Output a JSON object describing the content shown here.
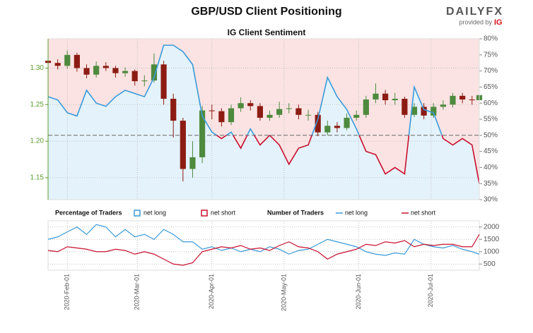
{
  "logo": {
    "brand": "DAILYFX",
    "tagline": "provided by",
    "sponsor": "IG"
  },
  "chart_data": [
    {
      "type": "candlestick",
      "title": "GBP/USD Client Positioning",
      "subtitle": "IG Client Sentiment",
      "x": [
        "2020-01-24",
        "2020-01-28",
        "2020-02-01",
        "2020-02-05",
        "2020-02-09",
        "2020-02-13",
        "2020-02-17",
        "2020-02-21",
        "2020-02-25",
        "2020-02-29",
        "2020-03-04",
        "2020-03-08",
        "2020-03-12",
        "2020-03-16",
        "2020-03-20",
        "2020-03-24",
        "2020-03-28",
        "2020-04-01",
        "2020-04-05",
        "2020-04-09",
        "2020-04-13",
        "2020-04-17",
        "2020-04-21",
        "2020-04-25",
        "2020-04-29",
        "2020-05-03",
        "2020-05-07",
        "2020-05-11",
        "2020-05-15",
        "2020-05-19",
        "2020-05-23",
        "2020-05-27",
        "2020-05-31",
        "2020-06-04",
        "2020-06-08",
        "2020-06-12",
        "2020-06-16",
        "2020-06-20",
        "2020-06-24",
        "2020-06-28",
        "2020-07-02",
        "2020-07-06",
        "2020-07-10",
        "2020-07-14",
        "2020-07-18",
        "2020-07-21"
      ],
      "open": [
        1.31,
        1.307,
        1.303,
        1.318,
        1.3,
        1.291,
        1.303,
        1.3,
        1.293,
        1.296,
        1.282,
        1.283,
        1.305,
        1.258,
        1.228,
        1.162,
        1.178,
        1.242,
        1.241,
        1.226,
        1.245,
        1.252,
        1.248,
        1.232,
        1.236,
        1.244,
        1.245,
        1.236,
        1.236,
        1.212,
        1.221,
        1.218,
        1.232,
        1.236,
        1.257,
        1.265,
        1.256,
        1.258,
        1.236,
        1.247,
        1.235,
        1.247,
        1.25,
        1.262,
        1.257,
        1.256
      ],
      "high": [
        1.316,
        1.312,
        1.324,
        1.321,
        1.305,
        1.309,
        1.308,
        1.303,
        1.301,
        1.298,
        1.29,
        1.32,
        1.31,
        1.265,
        1.232,
        1.2,
        1.248,
        1.25,
        1.245,
        1.25,
        1.26,
        1.256,
        1.252,
        1.242,
        1.254,
        1.252,
        1.25,
        1.243,
        1.24,
        1.228,
        1.226,
        1.238,
        1.242,
        1.262,
        1.279,
        1.27,
        1.266,
        1.261,
        1.252,
        1.252,
        1.252,
        1.256,
        1.266,
        1.266,
        1.262,
        1.27
      ],
      "low": [
        1.301,
        1.298,
        1.299,
        1.295,
        1.286,
        1.287,
        1.296,
        1.287,
        1.288,
        1.276,
        1.275,
        1.28,
        1.25,
        1.205,
        1.145,
        1.15,
        1.17,
        1.23,
        1.22,
        1.222,
        1.24,
        1.242,
        1.228,
        1.228,
        1.232,
        1.238,
        1.23,
        1.228,
        1.207,
        1.208,
        1.212,
        1.215,
        1.228,
        1.232,
        1.252,
        1.25,
        1.25,
        1.232,
        1.233,
        1.23,
        1.232,
        1.243,
        1.246,
        1.252,
        1.25,
        1.253
      ],
      "close": [
        1.307,
        1.303,
        1.318,
        1.3,
        1.291,
        1.303,
        1.3,
        1.293,
        1.296,
        1.282,
        1.283,
        1.305,
        1.258,
        1.228,
        1.162,
        1.178,
        1.242,
        1.241,
        1.226,
        1.245,
        1.252,
        1.248,
        1.232,
        1.236,
        1.244,
        1.245,
        1.236,
        1.236,
        1.212,
        1.221,
        1.218,
        1.232,
        1.236,
        1.257,
        1.265,
        1.256,
        1.258,
        1.236,
        1.247,
        1.235,
        1.247,
        1.25,
        1.262,
        1.257,
        1.256,
        1.263
      ],
      "up_color": "#4e8a3e",
      "down_color": "#8c1c13",
      "axis_color": "#5b9a2c",
      "ylim": [
        1.12,
        1.34
      ],
      "yticks": [
        1.15,
        {
          "value": 1.2,
          "label": "1.20"
        },
        1.25,
        {
          "value": 1.3,
          "label": "1.30"
        }
      ],
      "xlim": [
        "2020-01-24",
        "2020-07-21"
      ],
      "xticks": [
        {
          "value": "2020-02-01",
          "label": "2020-Feb-01"
        },
        {
          "value": "2020-03-01",
          "label": "2020-Mar-01"
        },
        {
          "value": "2020-04-01",
          "label": "2020-Apr-01"
        },
        {
          "value": "2020-05-01",
          "label": "2020-May-01"
        },
        {
          "value": "2020-06-01",
          "label": "2020-Jun-01"
        },
        {
          "value": "2020-07-01",
          "label": "2020-Jul-01"
        }
      ],
      "sentiment": {
        "values": [
          62,
          61,
          57,
          56,
          64,
          60,
          59,
          62,
          64,
          63,
          62,
          68,
          78,
          78,
          76,
          72,
          56,
          51,
          49,
          51,
          46,
          52,
          47,
          50,
          47,
          41,
          46,
          47,
          55,
          68,
          62,
          58,
          52,
          45,
          44,
          38,
          40,
          38,
          65,
          58,
          57,
          49,
          47,
          49,
          47,
          35
        ],
        "axis": "y2",
        "reference": 50,
        "long_color": "#3a9ad9",
        "short_color": "#c8102e",
        "long_fill": "#e4f2fb",
        "short_fill": "#fbe3e3"
      },
      "y2lim": [
        30,
        80
      ],
      "y2ticks": [
        {
          "value": 30,
          "label": "30%"
        },
        {
          "value": 35,
          "label": "35%"
        },
        {
          "value": 40,
          "label": "40%"
        },
        {
          "value": 45,
          "label": "45%"
        },
        {
          "value": 50,
          "label": "50%"
        },
        {
          "value": 55,
          "label": "55%"
        },
        {
          "value": 60,
          "label": "60%"
        },
        {
          "value": 65,
          "label": "65%"
        },
        {
          "value": 70,
          "label": "70%"
        },
        {
          "value": 75,
          "label": "75%"
        },
        {
          "value": 80,
          "label": "80%"
        }
      ],
      "legend_title": "Percentage of Traders",
      "legend": [
        {
          "name": "net long",
          "color": "#3a9ad9"
        },
        {
          "name": "net short",
          "color": "#c8102e"
        }
      ],
      "grid": true
    },
    {
      "type": "line",
      "legend_title": "Number of Traders",
      "series": [
        {
          "name": "net long",
          "color": "#3a9ad9",
          "values": [
            1500,
            1600,
            1800,
            2000,
            1700,
            2100,
            2000,
            1600,
            1900,
            1600,
            1700,
            1500,
            1900,
            1700,
            1400,
            1400,
            1100,
            1200,
            1050,
            1150,
            1000,
            1100,
            1000,
            1200,
            1100,
            900,
            1050,
            1100,
            1300,
            1500,
            1400,
            1300,
            1200,
            1000,
            900,
            850,
            950,
            900,
            1500,
            1300,
            1200,
            1150,
            1250,
            1100,
            1000,
            900
          ]
        },
        {
          "name": "net short",
          "color": "#c8102e",
          "values": [
            1050,
            1000,
            1200,
            1150,
            1100,
            1000,
            1000,
            1100,
            1050,
            900,
            1000,
            900,
            700,
            500,
            450,
            550,
            1000,
            1100,
            1200,
            1150,
            1250,
            1100,
            1150,
            1050,
            1250,
            1400,
            1200,
            1150,
            1000,
            700,
            900,
            1000,
            1100,
            1300,
            1250,
            1400,
            1350,
            1450,
            1200,
            1300,
            1250,
            1300,
            1300,
            1200,
            1200,
            1700
          ]
        }
      ],
      "ylim": [
        250,
        2250
      ],
      "yticks": [
        500,
        1000,
        1500,
        2000
      ],
      "grid": true
    }
  ]
}
